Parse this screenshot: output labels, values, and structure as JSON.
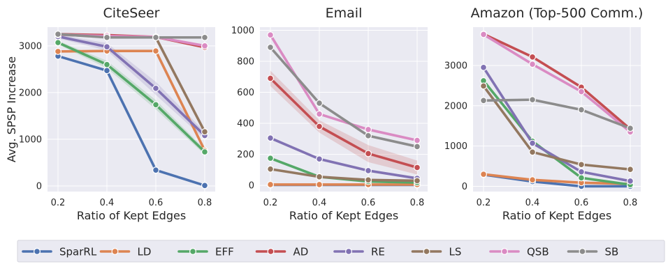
{
  "chart_data": [
    {
      "type": "line",
      "title": "CiteSeer",
      "xlabel": "Ratio of Kept Edges",
      "ylabel": "Avg. SPSP Increase",
      "x": [
        0.2,
        0.4,
        0.6,
        0.8
      ],
      "xticks": [
        "0.2",
        "0.4",
        "0.6",
        "0.8"
      ],
      "ylim": [
        -120,
        3400
      ],
      "yticks": [
        0,
        1000,
        2000,
        3000
      ],
      "yticklabels": [
        "0",
        "1000",
        "2000",
        "3000"
      ],
      "grid": true,
      "series": [
        {
          "name": "SparRL",
          "values": [
            2780,
            2470,
            340,
            10
          ]
        },
        {
          "name": "LD",
          "values": [
            2880,
            2890,
            2890,
            760
          ]
        },
        {
          "name": "EFF",
          "values": [
            3070,
            2600,
            1740,
            730
          ],
          "band": [
            [
              3030,
              3110
            ],
            [
              2520,
              2680
            ],
            [
              1640,
              1840
            ],
            [
              670,
              790
            ]
          ]
        },
        {
          "name": "AD",
          "values": [
            3250,
            3230,
            3190,
            2970
          ]
        },
        {
          "name": "RE",
          "values": [
            3200,
            2980,
            2090,
            1080
          ],
          "band": [
            [
              3160,
              3240
            ],
            [
              2900,
              3060
            ],
            [
              1950,
              2230
            ],
            [
              1000,
              1160
            ]
          ]
        },
        {
          "name": "LS",
          "values": [
            3240,
            3200,
            3180,
            1160
          ]
        },
        {
          "name": "QSB",
          "values": [
            3240,
            3210,
            3190,
            3000
          ]
        },
        {
          "name": "SB",
          "values": [
            3250,
            3180,
            3180,
            3180
          ]
        }
      ]
    },
    {
      "type": "line",
      "title": "Email",
      "xlabel": "Ratio of Kept Edges",
      "ylabel": "",
      "x": [
        0.2,
        0.4,
        0.6,
        0.8
      ],
      "xticks": [
        "0.2",
        "0.4",
        "0.6",
        "0.8"
      ],
      "ylim": [
        -40,
        1020
      ],
      "yticks": [
        0,
        200,
        400,
        600,
        800,
        1000
      ],
      "yticklabels": [
        "0",
        "200",
        "400",
        "600",
        "800",
        "1000"
      ],
      "grid": true,
      "series": [
        {
          "name": "SparRL",
          "values": [
            3,
            3,
            3,
            3
          ]
        },
        {
          "name": "LD",
          "values": [
            5,
            5,
            5,
            5
          ]
        },
        {
          "name": "EFF",
          "values": [
            175,
            55,
            25,
            18
          ]
        },
        {
          "name": "AD",
          "values": [
            690,
            380,
            205,
            115
          ],
          "band": [
            [
              640,
              740
            ],
            [
              340,
              420
            ],
            [
              150,
              260
            ],
            [
              70,
              160
            ]
          ]
        },
        {
          "name": "RE",
          "values": [
            305,
            170,
            95,
            45
          ]
        },
        {
          "name": "LS",
          "values": [
            105,
            55,
            35,
            30
          ]
        },
        {
          "name": "QSB",
          "values": [
            970,
            460,
            360,
            290
          ]
        },
        {
          "name": "SB",
          "values": [
            890,
            530,
            320,
            250
          ]
        }
      ]
    },
    {
      "type": "line",
      "title": "Amazon (Top-500 Comm.)",
      "xlabel": "Ratio of Kept Edges",
      "ylabel": "",
      "x": [
        0.2,
        0.4,
        0.6,
        0.8
      ],
      "xticks": [
        "0.2",
        "0.4",
        "0.6",
        "0.8"
      ],
      "ylim": [
        -130,
        3950
      ],
      "yticks": [
        0,
        1000,
        2000,
        3000
      ],
      "yticklabels": [
        "0",
        "1000",
        "2000",
        "3000"
      ],
      "grid": true,
      "series": [
        {
          "name": "SparRL",
          "values": [
            290,
            120,
            0,
            0
          ]
        },
        {
          "name": "LD",
          "values": [
            300,
            160,
            90,
            60
          ]
        },
        {
          "name": "EFF",
          "values": [
            2620,
            1120,
            210,
            40
          ]
        },
        {
          "name": "AD",
          "values": [
            3780,
            3210,
            2460,
            1420
          ]
        },
        {
          "name": "RE",
          "values": [
            2950,
            1070,
            360,
            130
          ]
        },
        {
          "name": "LS",
          "values": [
            2490,
            850,
            540,
            420
          ]
        },
        {
          "name": "QSB",
          "values": [
            3770,
            3030,
            2350,
            1350
          ]
        },
        {
          "name": "SB",
          "values": [
            2130,
            2150,
            1900,
            1440
          ]
        }
      ]
    }
  ],
  "legend": {
    "placement": "bottom",
    "entries": [
      {
        "name": "SparRL",
        "color": "#4c72b0"
      },
      {
        "name": "LD",
        "color": "#dd8452"
      },
      {
        "name": "EFF",
        "color": "#55a868"
      },
      {
        "name": "AD",
        "color": "#c44e52"
      },
      {
        "name": "RE",
        "color": "#8172b3"
      },
      {
        "name": "LS",
        "color": "#937860"
      },
      {
        "name": "QSB",
        "color": "#da8bc3"
      },
      {
        "name": "SB",
        "color": "#8c8c8c"
      }
    ]
  },
  "colors": {
    "plot_background": "#eaeaf2",
    "grid": "#ffffff"
  }
}
